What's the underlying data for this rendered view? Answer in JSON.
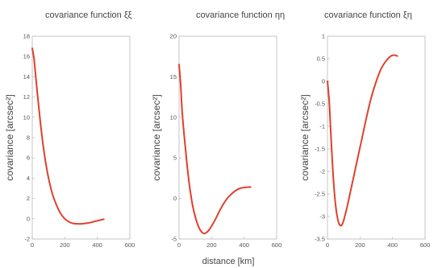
{
  "figure": {
    "xlabel": "distance [km]"
  },
  "chart_data": [
    {
      "type": "line",
      "title": "covariance function ξξ",
      "ylabel": "covariance [arcsec²]",
      "xlabel": "",
      "xlim": [
        0,
        600
      ],
      "ylim": [
        -2,
        18
      ],
      "xticks": [
        0,
        200,
        400,
        600
      ],
      "yticks": [
        -2,
        0,
        2,
        4,
        6,
        8,
        10,
        12,
        14,
        16,
        18
      ],
      "color": "#e0402a",
      "series": [
        {
          "x": [
            0,
            10,
            20,
            40,
            60,
            80,
            100,
            125,
            150,
            175,
            200,
            225,
            250,
            275,
            300,
            325,
            350,
            375,
            400,
            425,
            440
          ],
          "y": [
            16.8,
            15.9,
            14.3,
            11.0,
            8.1,
            5.8,
            4.0,
            2.4,
            1.3,
            0.5,
            0.0,
            -0.3,
            -0.45,
            -0.5,
            -0.5,
            -0.45,
            -0.4,
            -0.3,
            -0.2,
            -0.1,
            -0.05
          ]
        }
      ]
    },
    {
      "type": "line",
      "title": "covariance function ηη",
      "ylabel": "covariance [arcsec²]",
      "xlabel": "",
      "xlim": [
        0,
        600
      ],
      "ylim": [
        -5,
        20
      ],
      "xticks": [
        0,
        200,
        400,
        600
      ],
      "yticks": [
        -5,
        0,
        5,
        10,
        15,
        20
      ],
      "color": "#e0402a",
      "series": [
        {
          "x": [
            0,
            10,
            20,
            40,
            60,
            80,
            100,
            125,
            150,
            175,
            200,
            225,
            250,
            275,
            300,
            325,
            350,
            375,
            400,
            425,
            440
          ],
          "y": [
            16.5,
            14.0,
            10.5,
            6.0,
            2.2,
            -0.5,
            -2.3,
            -3.7,
            -4.3,
            -4.1,
            -3.4,
            -2.5,
            -1.5,
            -0.6,
            0.1,
            0.6,
            1.0,
            1.25,
            1.35,
            1.4,
            1.4
          ]
        }
      ]
    },
    {
      "type": "line",
      "title": "covariance function ξη",
      "ylabel": "covariance [arcsec²]",
      "xlabel": "",
      "xlim": [
        0,
        600
      ],
      "ylim": [
        -3.5,
        1
      ],
      "xticks": [
        0,
        200,
        400,
        600
      ],
      "yticks": [
        -3.5,
        -3,
        -2.5,
        -2,
        -1.5,
        -1,
        -0.5,
        0,
        0.5,
        1
      ],
      "color": "#e0402a",
      "series": [
        {
          "x": [
            0,
            10,
            20,
            30,
            40,
            50,
            60,
            70,
            80,
            90,
            100,
            120,
            150,
            180,
            210,
            240,
            270,
            300,
            330,
            360,
            390,
            410,
            430
          ],
          "y": [
            0.0,
            -0.4,
            -1.1,
            -1.8,
            -2.35,
            -2.75,
            -3.0,
            -3.15,
            -3.2,
            -3.18,
            -3.08,
            -2.8,
            -2.3,
            -1.8,
            -1.3,
            -0.8,
            -0.35,
            0.0,
            0.28,
            0.45,
            0.56,
            0.58,
            0.56
          ]
        }
      ]
    }
  ]
}
